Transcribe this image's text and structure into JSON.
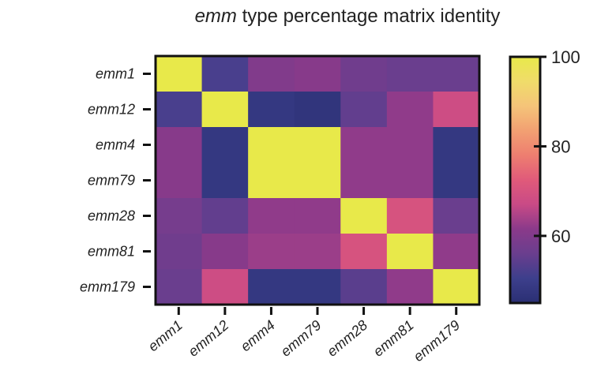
{
  "chart_data": {
    "type": "heatmap",
    "title_prefix": "emm",
    "title_rest": " type percentage matrix identity",
    "xlabel": "",
    "ylabel": "",
    "row_labels": [
      "emm1",
      "emm12",
      "emm4",
      "emm79",
      "emm28",
      "emm81",
      "emm179"
    ],
    "col_labels": [
      "emm1",
      "emm12",
      "emm4",
      "emm79",
      "emm28",
      "emm81",
      "emm179"
    ],
    "values": [
      [
        100,
        52,
        60,
        61,
        57,
        56,
        56
      ],
      [
        52,
        100,
        48,
        47,
        55,
        62,
        68
      ],
      [
        61,
        48,
        100,
        100,
        62,
        62,
        48
      ],
      [
        61,
        48,
        100,
        100,
        62,
        62,
        48
      ],
      [
        58,
        55,
        62,
        62,
        100,
        70,
        56
      ],
      [
        57,
        61,
        63,
        63,
        70,
        100,
        62
      ],
      [
        56,
        68,
        48,
        48,
        54,
        62,
        100
      ]
    ],
    "colorbar": {
      "min": 45,
      "max": 100,
      "ticks": [
        60,
        80,
        100
      ],
      "tick_labels": [
        "60",
        "80",
        "100"
      ]
    },
    "colormap": [
      "#2a2f73",
      "#3d3f8c",
      "#6a3e8e",
      "#8a3a8a",
      "#c94a86",
      "#e05a7a",
      "#ee7e70",
      "#f2a072",
      "#f5c479",
      "#f0dc6a",
      "#e8e94a"
    ],
    "grid": false,
    "legend": "colorbar-right"
  }
}
